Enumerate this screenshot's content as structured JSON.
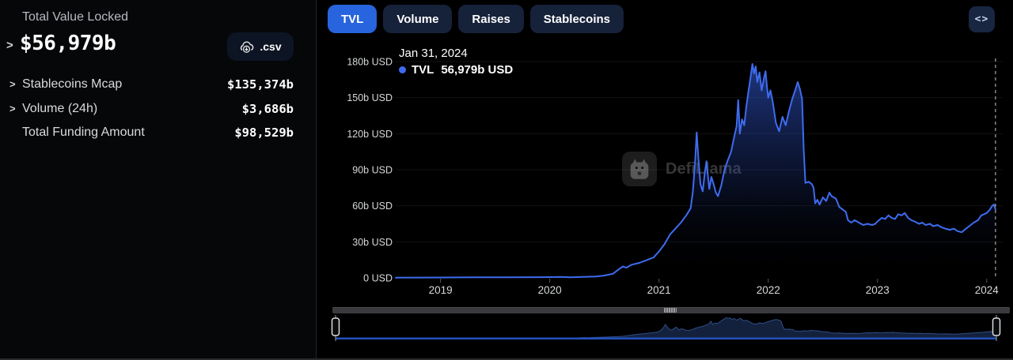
{
  "panel": {
    "title": "Total Value Locked",
    "chevron": ">",
    "tvl_value": "$56,979b",
    "csv_label": ".csv",
    "rows": [
      {
        "chevron": ">",
        "label": "Stablecoins Mcap",
        "value": "$135,374b"
      },
      {
        "chevron": ">",
        "label": "Volume (24h)",
        "value": "$3,686b"
      },
      {
        "chevron": "",
        "label": "Total Funding Amount",
        "value": "$98,529b"
      }
    ]
  },
  "tabs": [
    {
      "label": "TVL",
      "active": true
    },
    {
      "label": "Volume",
      "active": false
    },
    {
      "label": "Raises",
      "active": false
    },
    {
      "label": "Stablecoins",
      "active": false
    }
  ],
  "embed_icon": "<>",
  "tooltip": {
    "date": "Jan 31, 2024",
    "series": "TVL",
    "value": "56,979b USD"
  },
  "watermark": {
    "text": "DefiLlama"
  },
  "colors": {
    "accent_blue": "#3e6cf0",
    "tab_active": "#2764dd",
    "tab_inactive": "#16213a",
    "grid": "rgba(255,255,255,0.07)",
    "tick": "#55565a",
    "crosshair": "#9b9b9b",
    "area_top": "rgba(56,99,235,0.55)",
    "area_mid": "rgba(40,70,170,0.22)",
    "area_bottom": "rgba(0,0,0,0)",
    "minimap_fill": "#13213d",
    "minimap_edge": "#2f4d86",
    "minimap_base": "#2450bd",
    "handle_stroke": "#d9dde2"
  },
  "chart_data": {
    "type": "area",
    "title": "Total Value Locked",
    "series_name": "TVL",
    "unit": "b USD",
    "hover_point": {
      "date": "Jan 31, 2024",
      "value_label": "56,979b USD",
      "value": 56.979
    },
    "xlim": [
      2018.59,
      2024.11
    ],
    "ylim": [
      0,
      180
    ],
    "grid": true,
    "legend_position": "top-left",
    "y_ticks": [
      {
        "v": 0,
        "label": "0 USD"
      },
      {
        "v": 30,
        "label": "30b USD"
      },
      {
        "v": 60,
        "label": "60b USD"
      },
      {
        "v": 90,
        "label": "90b USD"
      },
      {
        "v": 120,
        "label": "120b USD"
      },
      {
        "v": 150,
        "label": "150b USD"
      },
      {
        "v": 180,
        "label": "180b USD"
      }
    ],
    "x_ticks": [
      {
        "t": 2019,
        "label": "2019"
      },
      {
        "t": 2020,
        "label": "2020"
      },
      {
        "t": 2021,
        "label": "2021"
      },
      {
        "t": 2022,
        "label": "2022"
      },
      {
        "t": 2023,
        "label": "2023"
      },
      {
        "t": 2024,
        "label": "2024"
      }
    ],
    "series": [
      {
        "name": "TVL",
        "points": [
          [
            2018.59,
            0.2
          ],
          [
            2018.8,
            0.25
          ],
          [
            2019.0,
            0.3
          ],
          [
            2019.3,
            0.45
          ],
          [
            2019.6,
            0.55
          ],
          [
            2019.9,
            0.6
          ],
          [
            2020.0,
            0.65
          ],
          [
            2020.1,
            0.8
          ],
          [
            2020.19,
            0.55
          ],
          [
            2020.3,
            0.8
          ],
          [
            2020.42,
            1.2
          ],
          [
            2020.5,
            2.0
          ],
          [
            2020.58,
            3.5
          ],
          [
            2020.63,
            7
          ],
          [
            2020.67,
            9.5
          ],
          [
            2020.7,
            8.5
          ],
          [
            2020.75,
            11
          ],
          [
            2020.82,
            12.5
          ],
          [
            2020.88,
            14.5
          ],
          [
            2020.95,
            17
          ],
          [
            2021.0,
            22
          ],
          [
            2021.05,
            28
          ],
          [
            2021.1,
            36
          ],
          [
            2021.15,
            41
          ],
          [
            2021.2,
            46
          ],
          [
            2021.25,
            52
          ],
          [
            2021.29,
            58
          ],
          [
            2021.31,
            72
          ],
          [
            2021.33,
            95
          ],
          [
            2021.345,
            121
          ],
          [
            2021.36,
            100
          ],
          [
            2021.38,
            78
          ],
          [
            2021.4,
            72
          ],
          [
            2021.42,
            88
          ],
          [
            2021.435,
            97
          ],
          [
            2021.46,
            74
          ],
          [
            2021.48,
            84
          ],
          [
            2021.5,
            78
          ],
          [
            2021.52,
            71
          ],
          [
            2021.54,
            68
          ],
          [
            2021.57,
            77
          ],
          [
            2021.6,
            90
          ],
          [
            2021.63,
            98
          ],
          [
            2021.66,
            105
          ],
          [
            2021.69,
            118
          ],
          [
            2021.71,
            126
          ],
          [
            2021.725,
            148
          ],
          [
            2021.74,
            120
          ],
          [
            2021.76,
            132
          ],
          [
            2021.78,
            127
          ],
          [
            2021.8,
            143
          ],
          [
            2021.82,
            156
          ],
          [
            2021.84,
            168
          ],
          [
            2021.855,
            178
          ],
          [
            2021.87,
            170
          ],
          [
            2021.885,
            176
          ],
          [
            2021.9,
            163
          ],
          [
            2021.92,
            171
          ],
          [
            2021.94,
            156
          ],
          [
            2021.96,
            166
          ],
          [
            2021.975,
            172
          ],
          [
            2021.99,
            158
          ],
          [
            2022.0,
            150
          ],
          [
            2022.02,
            156
          ],
          [
            2022.04,
            147
          ],
          [
            2022.07,
            129
          ],
          [
            2022.1,
            122
          ],
          [
            2022.13,
            134
          ],
          [
            2022.16,
            127
          ],
          [
            2022.19,
            139
          ],
          [
            2022.22,
            149
          ],
          [
            2022.25,
            157
          ],
          [
            2022.27,
            163
          ],
          [
            2022.29,
            157
          ],
          [
            2022.31,
            149
          ],
          [
            2022.325,
            106
          ],
          [
            2022.34,
            79
          ],
          [
            2022.37,
            80
          ],
          [
            2022.4,
            78
          ],
          [
            2022.415,
            75
          ],
          [
            2022.43,
            62
          ],
          [
            2022.45,
            65
          ],
          [
            2022.47,
            61
          ],
          [
            2022.5,
            67
          ],
          [
            2022.53,
            64
          ],
          [
            2022.56,
            71
          ],
          [
            2022.58,
            68
          ],
          [
            2022.62,
            66
          ],
          [
            2022.65,
            59
          ],
          [
            2022.68,
            57
          ],
          [
            2022.71,
            55
          ],
          [
            2022.73,
            48
          ],
          [
            2022.76,
            46
          ],
          [
            2022.79,
            48
          ],
          [
            2022.83,
            46
          ],
          [
            2022.87,
            44
          ],
          [
            2022.91,
            45
          ],
          [
            2022.95,
            44
          ],
          [
            2022.98,
            45
          ],
          [
            2023.0,
            47
          ],
          [
            2023.04,
            50
          ],
          [
            2023.07,
            49
          ],
          [
            2023.1,
            52
          ],
          [
            2023.13,
            50
          ],
          [
            2023.16,
            49
          ],
          [
            2023.19,
            53
          ],
          [
            2023.22,
            52
          ],
          [
            2023.25,
            54
          ],
          [
            2023.28,
            50
          ],
          [
            2023.31,
            48
          ],
          [
            2023.34,
            47
          ],
          [
            2023.38,
            45
          ],
          [
            2023.41,
            46
          ],
          [
            2023.44,
            44
          ],
          [
            2023.48,
            45
          ],
          [
            2023.51,
            43
          ],
          [
            2023.55,
            44
          ],
          [
            2023.59,
            42
          ],
          [
            2023.62,
            41
          ],
          [
            2023.66,
            40
          ],
          [
            2023.7,
            41
          ],
          [
            2023.73,
            39
          ],
          [
            2023.77,
            38
          ],
          [
            2023.81,
            41
          ],
          [
            2023.84,
            43
          ],
          [
            2023.88,
            46
          ],
          [
            2023.92,
            48
          ],
          [
            2023.95,
            52
          ],
          [
            2024.0,
            54
          ],
          [
            2024.03,
            57
          ],
          [
            2024.05,
            60
          ],
          [
            2024.065,
            61
          ],
          [
            2024.08,
            57
          ]
        ]
      }
    ]
  }
}
